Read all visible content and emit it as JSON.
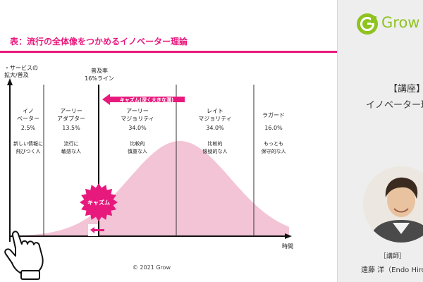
{
  "slide": {
    "title": "表：流行の全体像をつかめるイノベーター理論",
    "copyright": "© 2021 Grow"
  },
  "chart_data": {
    "type": "area",
    "ylabel_lines": [
      "・サービスの",
      "拡大/普及"
    ],
    "xlabel": "時間",
    "segments": [
      {
        "name_lines": [
          "イノ",
          "ベーター"
        ],
        "percent": "2.5%",
        "desc_lines": [
          "新しい情報に",
          "飛びつく人"
        ]
      },
      {
        "name_lines": [
          "アーリー",
          "アダプター"
        ],
        "percent": "13.5%",
        "desc_lines": [
          "流行に",
          "敏感な人"
        ]
      },
      {
        "name_lines": [
          "アーリー",
          "マジョリティ"
        ],
        "percent": "34.0%",
        "desc_lines": [
          "比較的",
          "慎重な人"
        ]
      },
      {
        "name_lines": [
          "レイト",
          "マジョリティ"
        ],
        "percent": "34.0%",
        "desc_lines": [
          "比較的",
          "懐疑的な人"
        ]
      },
      {
        "name_lines": [
          "ラガード"
        ],
        "percent": "16.0%",
        "desc_lines": [
          "もっとも",
          "保守的な人"
        ]
      }
    ],
    "threshold_label_lines": [
      "普及率",
      "16%ライン"
    ],
    "chasm_arrow_label": "キャズム(深く大きな溝)",
    "chasm_badge_label": "キャズム",
    "colors": {
      "accent": "#e8197d",
      "curve_fill": "#f3c4d6",
      "badge": "#e8197d"
    }
  },
  "sidebar": {
    "logo_text": "Grow",
    "course_label": "【講座】",
    "course_name": "イノベーター理論",
    "instructor_role": "［講師］",
    "instructor_name": "遠藤 洋（Endo Hiroshi）"
  }
}
